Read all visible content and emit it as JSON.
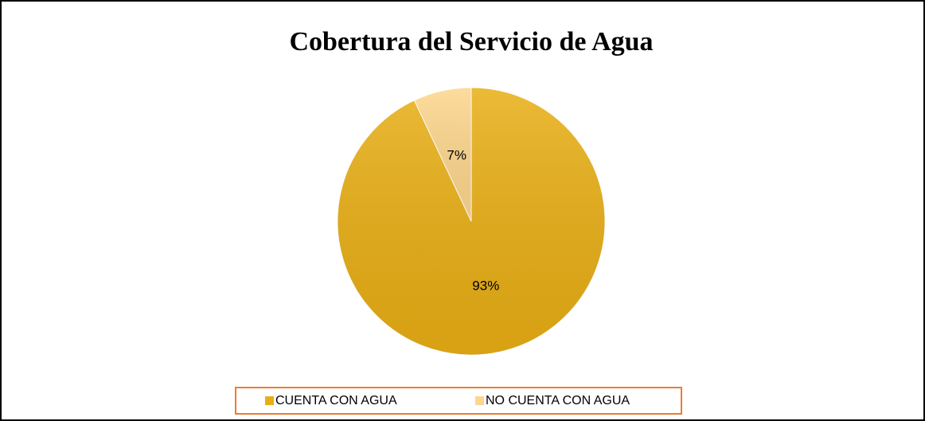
{
  "chart_data": {
    "type": "pie",
    "title": "Cobertura del Servicio de Agua",
    "categories": [
      "CUENTA CON AGUA",
      "NO CUENTA CON AGUA"
    ],
    "values": [
      93,
      7
    ],
    "value_labels": [
      "93%",
      "7%"
    ],
    "colors": [
      "#E8AE14",
      "#FDD68C"
    ],
    "legend": "bottom"
  }
}
